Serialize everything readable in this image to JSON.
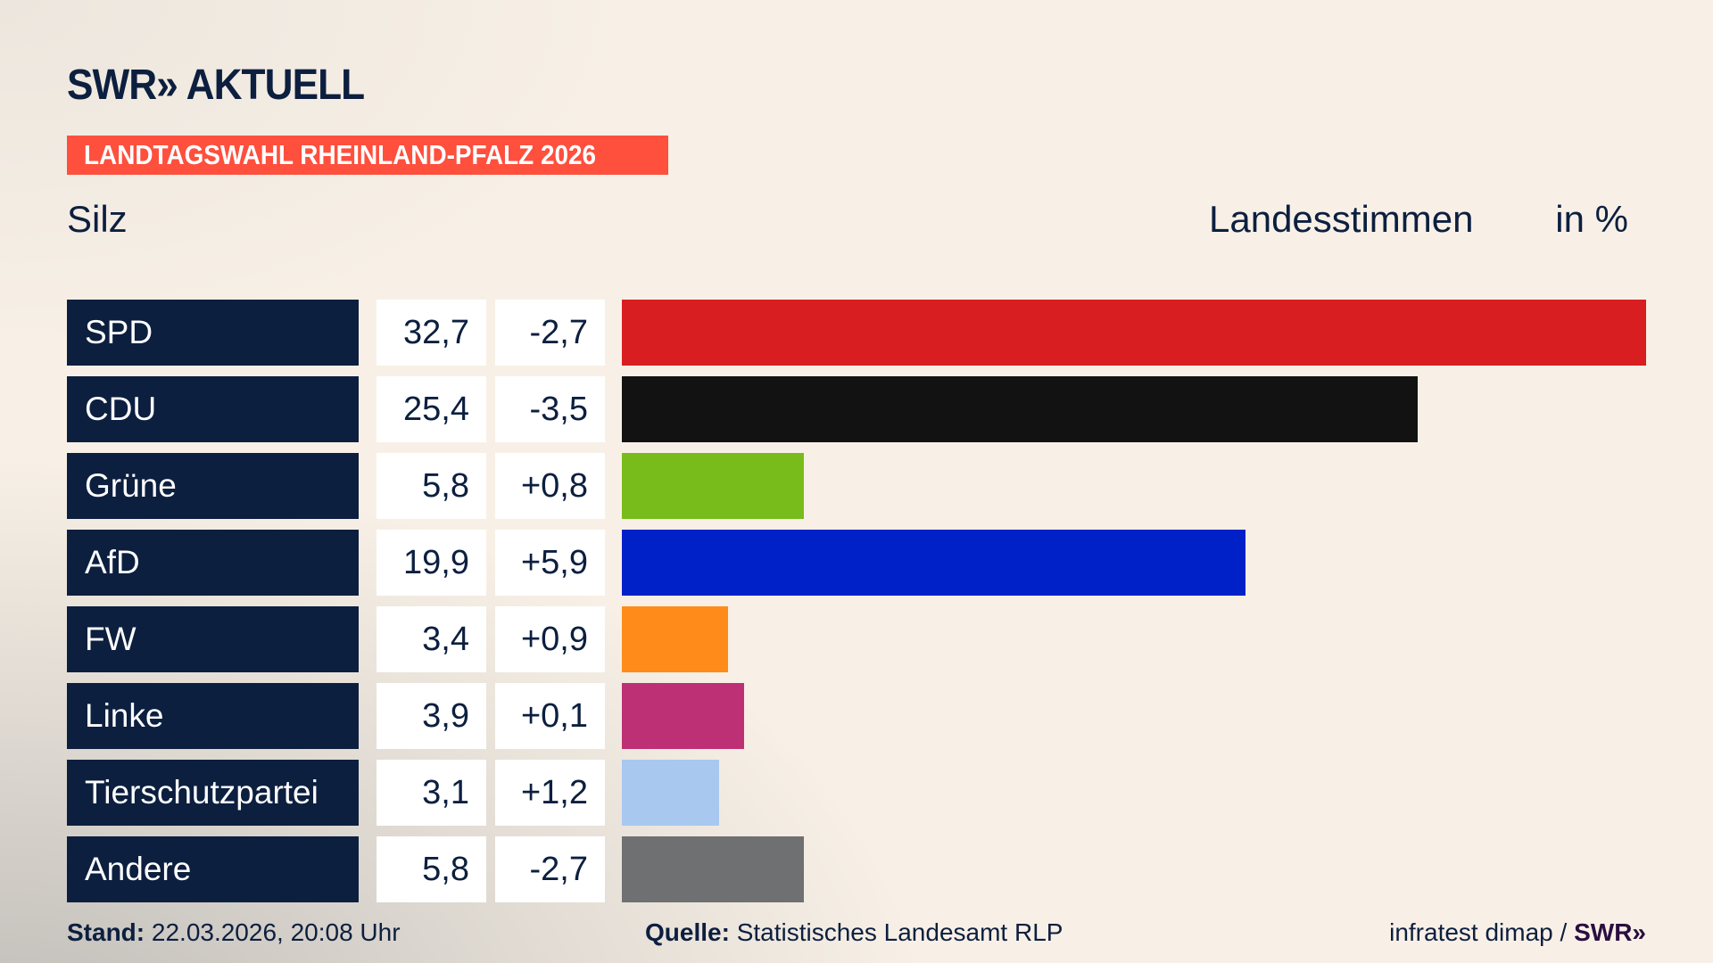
{
  "header": {
    "logo": "SWR» AKTUELL",
    "banner": "LANDTAGSWAHL RHEINLAND-PFALZ 2026",
    "place": "Silz",
    "measure": "Landesstimmen",
    "unit": "in %"
  },
  "chart_data": {
    "type": "bar",
    "orientation": "horizontal",
    "categories": [
      "SPD",
      "CDU",
      "Grüne",
      "AfD",
      "FW",
      "Linke",
      "Tierschutzpartei",
      "Andere"
    ],
    "values": [
      32.7,
      25.4,
      5.8,
      19.9,
      3.4,
      3.9,
      3.1,
      5.8
    ],
    "value_labels": [
      "32,7",
      "25,4",
      "5,8",
      "19,9",
      "3,4",
      "3,9",
      "3,1",
      "5,8"
    ],
    "diff_labels": [
      "-2,7",
      "-3,5",
      "+0,8",
      "+5,9",
      "+0,9",
      "+0,1",
      "+1,2",
      "-2,7"
    ],
    "colors": [
      "#d81e20",
      "#121212",
      "#78bc1b",
      "#0021c8",
      "#ff8c1a",
      "#bd3075",
      "#a8c8f0",
      "#6f7072"
    ],
    "xlim": [
      0,
      32.7
    ],
    "grid": false
  },
  "footer": {
    "stand_label": "Stand:",
    "stand_value": "22.03.2026, 20:08 Uhr",
    "source_label": "Quelle:",
    "source_value": "Statistisches Landesamt RLP",
    "credit": "infratest dimap /",
    "credit_logo": "SWR»"
  }
}
